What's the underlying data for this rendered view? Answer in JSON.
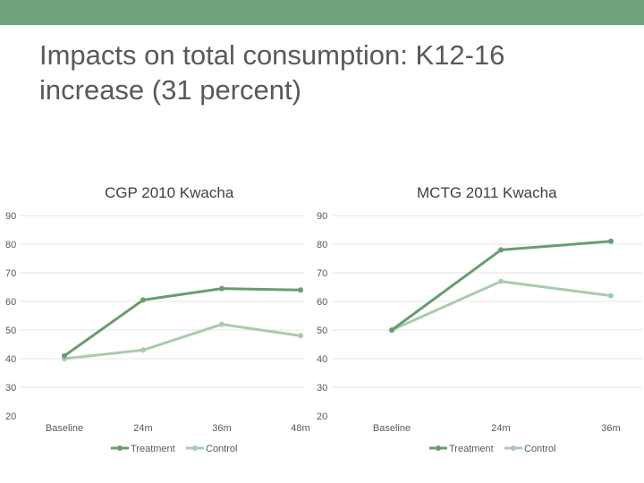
{
  "slide": {
    "title": "Impacts on total consumption: K12-16 increase (31 percent)",
    "bar_color": "#6FA27A"
  },
  "chart_data": [
    {
      "type": "line",
      "title": "CGP 2010 Kwacha",
      "categories": [
        "Baseline",
        "24m",
        "36m",
        "48m"
      ],
      "series": [
        {
          "name": "Treatment",
          "values": [
            41,
            60.5,
            64.5,
            64
          ],
          "color": "#6B9B73"
        },
        {
          "name": "Control",
          "values": [
            40,
            43,
            52,
            48
          ],
          "color": "#A9CBAE"
        }
      ],
      "yticks": [
        20,
        30,
        40,
        50,
        60,
        70,
        80,
        90
      ],
      "ylim": [
        20,
        90
      ],
      "grid": true,
      "legend": "bottom"
    },
    {
      "type": "line",
      "title": "MCTG 2011 Kwacha",
      "categories": [
        "Baseline",
        "24m",
        "36m"
      ],
      "series": [
        {
          "name": "Treatment",
          "values": [
            50,
            78,
            81
          ],
          "color": "#6B9B73"
        },
        {
          "name": "Control",
          "values": [
            50,
            67,
            62
          ],
          "color": "#A9CBAE"
        }
      ],
      "yticks": [
        20,
        30,
        40,
        50,
        60,
        70,
        80,
        90
      ],
      "ylim": [
        20,
        90
      ],
      "grid": true,
      "legend": "bottom"
    }
  ]
}
